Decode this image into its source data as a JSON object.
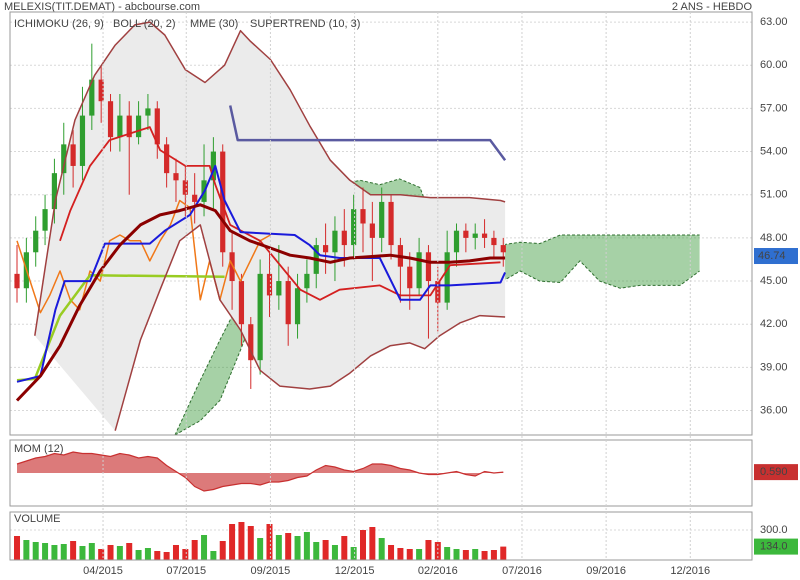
{
  "chart_data": [
    {
      "type": "candlestick",
      "title": "MELEXIS(TIT.DEMAT) - abcbourse.com",
      "subtitle": "2 ANS - HEBDO",
      "x": [
        0,
        1,
        2,
        3,
        4,
        5,
        6,
        7,
        8,
        9,
        10,
        11,
        12,
        13,
        14,
        15,
        16,
        17,
        18,
        19,
        20,
        21,
        22,
        23,
        24,
        25,
        26,
        27,
        28,
        29,
        30,
        31,
        32,
        33,
        34,
        35,
        36,
        37,
        38,
        39,
        40,
        41,
        42,
        43,
        44,
        45,
        46,
        47,
        48,
        49,
        50,
        51,
        52
      ],
      "open": [
        45.5,
        44.5,
        47,
        48.5,
        50,
        52.5,
        54.5,
        53,
        56.5,
        59,
        57.5,
        55,
        56.5,
        55,
        56.5,
        57,
        54.5,
        52.5,
        52,
        51,
        50.5,
        52,
        54,
        47,
        45,
        42,
        39.5,
        45.5,
        44,
        45,
        42,
        44.5,
        45.5,
        47.5,
        47,
        48.5,
        47.5,
        50,
        49,
        48,
        50.5,
        47.5,
        46,
        44.5,
        47,
        45,
        43.5,
        47,
        48.5,
        48,
        48.3,
        48,
        47.5
      ],
      "high": [
        47.5,
        48,
        49.5,
        51,
        53.5,
        56,
        55.5,
        58.5,
        61.5,
        60,
        58,
        58,
        57.5,
        57.5,
        58,
        57.5,
        55,
        53.5,
        53,
        52.5,
        54.5,
        55,
        54.5,
        48.5,
        45.5,
        42.5,
        46.5,
        47,
        47.5,
        46,
        45.5,
        46.5,
        48,
        49,
        49.5,
        50,
        51,
        51.5,
        50.5,
        51.5,
        51,
        48,
        47,
        48,
        47.5,
        46,
        48.5,
        49,
        49,
        49,
        49.3,
        48.5,
        48
      ],
      "low": [
        43.5,
        43.5,
        46,
        47.5,
        49,
        51,
        51.5,
        52,
        55.5,
        56,
        54,
        54,
        51,
        54.5,
        55.5,
        53.5,
        51.5,
        50.5,
        49.5,
        49,
        49.5,
        50,
        46,
        43,
        40.5,
        37.5,
        38.5,
        42.5,
        43,
        40.5,
        41,
        43.5,
        44.5,
        45.5,
        45,
        46,
        46.5,
        47,
        45,
        47,
        46.5,
        43.5,
        43,
        44,
        41,
        41.5,
        43,
        46,
        47,
        47.2,
        47.3,
        46.5,
        46
      ],
      "close": [
        44.5,
        47,
        48.5,
        50,
        52.5,
        54.5,
        53,
        56.5,
        59,
        57.5,
        55,
        56.5,
        55,
        56.5,
        57,
        54.5,
        52.5,
        52,
        51,
        50.5,
        52,
        54,
        47,
        45,
        42,
        39.5,
        45.5,
        44,
        45,
        42,
        44.5,
        45.5,
        47.5,
        47,
        48.5,
        47.5,
        50,
        49,
        48,
        50.5,
        47.5,
        46,
        44.5,
        47,
        45,
        43.5,
        47,
        48.5,
        48,
        48.3,
        48,
        47.5,
        47
      ],
      "up_color": "#2f9e2f",
      "down_color": "#d42a2a",
      "xlim": [
        -0.75,
        78.6
      ],
      "xticks": [
        {
          "value": 9.2,
          "label": "04/2015"
        },
        {
          "value": 18.1,
          "label": "07/2015"
        },
        {
          "value": 27.1,
          "label": "09/2015"
        },
        {
          "value": 36.1,
          "label": "12/2015"
        },
        {
          "value": 45,
          "label": "02/2016"
        },
        {
          "value": 54,
          "label": "07/2016"
        },
        {
          "value": 63,
          "label": "09/2016"
        },
        {
          "value": 72,
          "label": "12/2016"
        }
      ],
      "ylim": [
        34.3,
        63.7
      ],
      "yticks": [
        {
          "value": 36,
          "label": "36.00"
        },
        {
          "value": 39,
          "label": "39.00"
        },
        {
          "value": 42,
          "label": "42.00"
        },
        {
          "value": 45,
          "label": "45.00"
        },
        {
          "value": 48,
          "label": "48.00"
        },
        {
          "value": 51,
          "label": "51.00"
        },
        {
          "value": 54,
          "label": "54.00"
        },
        {
          "value": 57,
          "label": "57.00"
        },
        {
          "value": 60,
          "label": "60.00"
        },
        {
          "value": 63,
          "label": "63.00"
        }
      ],
      "grid": true,
      "last_price": 46.74,
      "last_price_color": "#2f6fd0",
      "indicators": [
        {
          "label": "ICHIMOKU (26, 9)",
          "color": "#1a1adb",
          "cloud": {
            "color": "#3a9a3a",
            "x": [
              16.9,
              19.6,
              21.7,
              23.9,
              26,
              28.1,
              30.3,
              32.4,
              34.5,
              36.7,
              38.8,
              40.9,
              43.1,
              45.2,
              47.4,
              49.5,
              51.7,
              53.8,
              55.9,
              58.1,
              60.2,
              62.3,
              64.5,
              66.6,
              68.8,
              70.9,
              73
            ],
            "span_a": [
              34.3,
              38.1,
              40.9,
              43.7,
              45.7,
              47.8,
              50.6,
              51.3,
              51.7,
              52,
              51.7,
              52.1,
              51.5,
              47.8,
              46.8,
              47.3,
              47.5,
              47.7,
              47.6,
              48.2,
              48.2,
              48.2,
              48.2,
              48.2,
              48.2,
              48.2,
              48.2
            ],
            "span_b": [
              34.3,
              35.3,
              36.7,
              40.2,
              43.7,
              44.4,
              45,
              45.4,
              45.7,
              45.7,
              45.4,
              45.4,
              45.4,
              45.4,
              45,
              45,
              44.9,
              45.7,
              45,
              44.9,
              46.4,
              45,
              44.5,
              44.7,
              44.7,
              44.7,
              45.7
            ]
          },
          "lines": [
            {
              "color": "#f07818",
              "width": 1.5,
              "x": [
                0,
                1.4,
                2.5,
                3.5,
                4.6,
                5.7,
                6.7,
                7.8,
                8.9,
                9.9,
                11,
                12.1,
                13.2,
                14.2,
                15.3,
                16.4,
                17.4,
                18.5,
                19.6,
                20.6,
                21.7,
                22.8,
                23.9,
                26,
                27.1
              ],
              "values": [
                47.8,
                45,
                42.8,
                44,
                45.7,
                43.7,
                43,
                45.7,
                45,
                47.8,
                48.2,
                47.8,
                47.8,
                46.4,
                47.8,
                48.9,
                50.6,
                50.1,
                43.7,
                46.4,
                43.7,
                46.4,
                45,
                47.8,
                48.2
              ]
            },
            {
              "color": "#99cc22",
              "width": 2.5,
              "x": [
                0,
                1.9,
                4.6,
                7.8,
                22.2
              ],
              "values": [
                38.1,
                38.2,
                42.6,
                45.4,
                45.3
              ]
            },
            {
              "color": "#d42020",
              "width": 1.8,
              "x": [
                4.6,
                5.7,
                7.8,
                9.9,
                14.2,
                15.3,
                18,
                20.6,
                21.2,
                22.8,
                26,
                30.3,
                32.4,
                34.5,
                38.8,
                41,
                44.2,
                46.3,
                51.7
              ],
              "values": [
                47.8,
                49.9,
                53,
                54.8,
                55.7,
                54.1,
                53,
                53,
                51.7,
                48.9,
                47.8,
                44.4,
                43.7,
                44.4,
                44.7,
                44,
                44,
                46.1,
                46.3
              ]
            },
            {
              "color": "#1a1adb",
              "width": 2,
              "x": [
                0,
                2.5,
                4.1,
                5.1,
                7.8,
                9.4,
                14.2,
                15.8,
                18.5,
                20.1,
                21.2,
                22.2,
                23.9,
                29.7,
                31.3,
                32.4,
                34.5,
                38.8,
                41,
                43.1,
                44.2,
                46.3,
                51.7,
                52.2
              ],
              "values": [
                38,
                38.4,
                43,
                45,
                45,
                47.6,
                47.6,
                48.5,
                49.6,
                51.3,
                53,
                50.6,
                48.4,
                48.2,
                47.5,
                46.8,
                46.6,
                46.6,
                43.7,
                43.7,
                44.7,
                44.7,
                44.9,
                45.6
              ]
            }
          ]
        },
        {
          "label": "BOLL (20, 2)",
          "color": "#a04040",
          "fill": "#ebebeb",
          "lines": [
            {
              "color": "#a04040",
              "width": 1.5,
              "x": [
                1.9,
                4.1,
                6.2,
                8.3,
                10.5,
                12.6,
                14.2,
                15.8,
                18,
                20.1,
                22.2,
                23.9,
                24.9,
                27.1,
                29.2,
                31.3,
                33.5,
                35.6,
                37.8,
                41,
                44.2,
                48.4,
                51.7,
                52.2
              ],
              "values": [
                41.2,
                50.6,
                56.2,
                59.3,
                61.4,
                62.8,
                63,
                62.1,
                59.7,
                58.8,
                60,
                62.4,
                61.7,
                60.4,
                58.3,
                55.8,
                53.4,
                52,
                51,
                51,
                50.8,
                50.8,
                50.6,
                50.5
              ]
            },
            {
              "color": "#a04040",
              "width": 1.5,
              "x": [
                10.5,
                13.2,
                15.3,
                17.4,
                19.6,
                21.7,
                23.9,
                26,
                28.1,
                31.3,
                33.5,
                35.6,
                37.8,
                39.9,
                42,
                43.6,
                45.2,
                47.4,
                49.5,
                52.2
              ],
              "values": [
                34.6,
                40.9,
                44.4,
                47.8,
                48.9,
                43.7,
                41.6,
                38.8,
                37.7,
                37.5,
                37.7,
                38.6,
                39.8,
                40.5,
                40.7,
                40.3,
                41.2,
                42.1,
                42.6,
                42.5
              ]
            }
          ]
        },
        {
          "label": "MME (30)",
          "color": "#8b0000",
          "lines": [
            {
              "color": "#8b0000",
              "width": 3,
              "x": [
                0,
                2.5,
                4.6,
                6.7,
                8.9,
                11,
                13.2,
                15.3,
                17.4,
                19.6,
                21.2,
                22.8,
                24.9,
                27.1,
                29.2,
                31.3,
                33.5,
                35.6,
                37.8,
                39.9,
                42,
                44.2,
                46.3,
                48.4,
                50.6,
                52.2
              ],
              "values": [
                36.7,
                38.4,
                40.5,
                43.3,
                45.7,
                47.5,
                48.9,
                49.6,
                49.9,
                50.3,
                49.9,
                48.5,
                47.8,
                47.3,
                46.8,
                46.6,
                46.3,
                46.6,
                46.7,
                46.8,
                46.6,
                46.3,
                46.3,
                46.4,
                46.6,
                46.6
              ]
            }
          ]
        },
        {
          "label": "SUPERTREND (10, 3)",
          "color": "#5a5aa0",
          "lines": [
            {
              "color": "#5a5aa0",
              "width": 2.5,
              "x": [
                22.8,
                23.6,
                50.6,
                52.2
              ],
              "values": [
                57.2,
                54.8,
                54.8,
                53.4
              ]
            }
          ]
        }
      ]
    },
    {
      "type": "area",
      "label": "MOM (12)",
      "color": "#c83030",
      "fill": "#dc7a7a",
      "values": [
        6,
        8,
        10,
        11,
        13,
        12,
        14,
        13,
        13,
        12,
        11,
        13,
        12,
        10,
        11,
        10,
        5,
        1,
        -3,
        -9,
        -12,
        -11,
        -9,
        -8,
        -7,
        -7,
        -8,
        -6,
        -6,
        -5,
        -3,
        -2,
        2,
        5,
        4,
        2,
        1,
        3,
        6,
        6,
        5,
        3,
        2,
        0,
        -1,
        -1,
        0,
        1,
        -1,
        -2,
        1,
        0,
        0.59
      ],
      "ylim": [
        -22,
        22
      ],
      "last_tag": {
        "value": 0.59,
        "label": "0.590"
      }
    },
    {
      "type": "bar",
      "label": "VOLUME",
      "color": "#3cb83c",
      "values": [
        240,
        200,
        180,
        170,
        150,
        160,
        190,
        140,
        170,
        110,
        150,
        140,
        170,
        100,
        120,
        90,
        80,
        150,
        110,
        200,
        250,
        90,
        190,
        360,
        380,
        340,
        220,
        360,
        250,
        270,
        240,
        280,
        180,
        200,
        150,
        240,
        130,
        300,
        330,
        220,
        150,
        120,
        110,
        110,
        200,
        180,
        130,
        110,
        100,
        110,
        90,
        100,
        134
      ],
      "up_color": "#3cb83c",
      "down_color": "#e02828",
      "ylim": [
        0,
        480
      ],
      "yticks": [
        {
          "value": 300,
          "label": "300.0"
        }
      ],
      "last_tag": {
        "value": 134,
        "label": "134.0"
      }
    }
  ]
}
